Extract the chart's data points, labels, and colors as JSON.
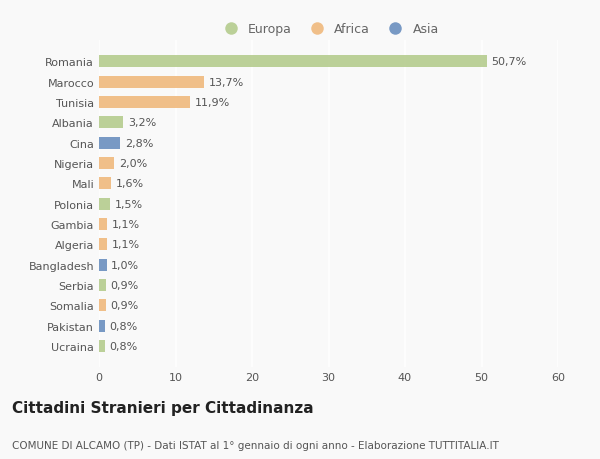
{
  "categories": [
    "Romania",
    "Marocco",
    "Tunisia",
    "Albania",
    "Cina",
    "Nigeria",
    "Mali",
    "Polonia",
    "Gambia",
    "Algeria",
    "Bangladesh",
    "Serbia",
    "Somalia",
    "Pakistan",
    "Ucraina"
  ],
  "values": [
    50.7,
    13.7,
    11.9,
    3.2,
    2.8,
    2.0,
    1.6,
    1.5,
    1.1,
    1.1,
    1.0,
    0.9,
    0.9,
    0.8,
    0.8
  ],
  "labels": [
    "50,7%",
    "13,7%",
    "11,9%",
    "3,2%",
    "2,8%",
    "2,0%",
    "1,6%",
    "1,5%",
    "1,1%",
    "1,1%",
    "1,0%",
    "0,9%",
    "0,9%",
    "0,8%",
    "0,8%"
  ],
  "regions": [
    "Europa",
    "Africa",
    "Africa",
    "Europa",
    "Asia",
    "Africa",
    "Africa",
    "Europa",
    "Africa",
    "Africa",
    "Asia",
    "Europa",
    "Africa",
    "Asia",
    "Europa"
  ],
  "colors": {
    "Europa": "#b5cc8e",
    "Africa": "#f0b97d",
    "Asia": "#6a8fbf"
  },
  "xlim": [
    0,
    60
  ],
  "xticks": [
    0,
    10,
    20,
    30,
    40,
    50,
    60
  ],
  "title": "Cittadini Stranieri per Cittadinanza",
  "subtitle": "COMUNE DI ALCAMO (TP) - Dati ISTAT al 1° gennaio di ogni anno - Elaborazione TUTTITALIA.IT",
  "background_color": "#f9f9f9",
  "grid_color": "#e0e0e0",
  "bar_height": 0.6,
  "title_fontsize": 11,
  "subtitle_fontsize": 7.5,
  "label_fontsize": 8,
  "tick_fontsize": 8,
  "legend_fontsize": 9
}
